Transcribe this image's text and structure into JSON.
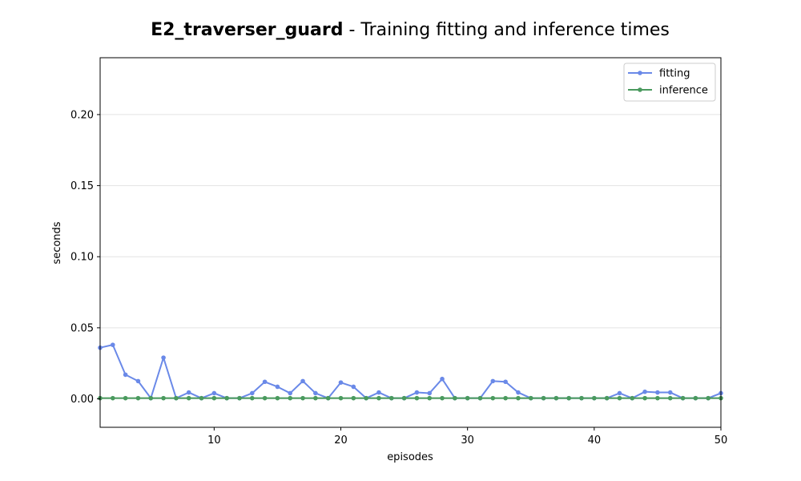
{
  "chart_data": {
    "type": "line",
    "title_bold": "E2_traverser_guard",
    "title_rest": " - Training fitting and inference times",
    "xlabel": "episodes",
    "ylabel": "seconds",
    "xlim": [
      1,
      50
    ],
    "ylim": [
      -0.02,
      0.24
    ],
    "xticks": [
      10,
      20,
      30,
      40,
      50
    ],
    "yticks": [
      0.0,
      0.05,
      0.1,
      0.15,
      0.2
    ],
    "ytick_labels": [
      "0.00",
      "0.05",
      "0.10",
      "0.15",
      "0.20"
    ],
    "grid": "horizontal",
    "legend": "top-right",
    "x": [
      1,
      2,
      3,
      4,
      5,
      6,
      7,
      8,
      9,
      10,
      11,
      12,
      13,
      14,
      15,
      16,
      17,
      18,
      19,
      20,
      21,
      22,
      23,
      24,
      25,
      26,
      27,
      28,
      29,
      30,
      31,
      32,
      33,
      34,
      35,
      36,
      37,
      38,
      39,
      40,
      41,
      42,
      43,
      44,
      45,
      46,
      47,
      48,
      49,
      50
    ],
    "series": [
      {
        "name": "fitting",
        "color": "#6a89e8",
        "values": [
          0.036,
          0.038,
          0.017,
          0.0125,
          0.0005,
          0.029,
          0.0005,
          0.0045,
          0.0005,
          0.004,
          0.0005,
          0.0005,
          0.004,
          0.012,
          0.0085,
          0.004,
          0.0125,
          0.004,
          0.0005,
          0.0115,
          0.0085,
          0.0005,
          0.0045,
          0.0005,
          0.0005,
          0.0045,
          0.004,
          0.014,
          0.0005,
          0.0005,
          0.0005,
          0.0125,
          0.012,
          0.0045,
          0.0005,
          0.0005,
          0.0005,
          0.0005,
          0.0005,
          0.0005,
          0.0005,
          0.004,
          0.0005,
          0.005,
          0.0045,
          0.0045,
          0.0005,
          0.0005,
          0.0005,
          0.004
        ]
      },
      {
        "name": "inference",
        "color": "#4a9a5e",
        "values": [
          0.0005,
          0.0005,
          0.0005,
          0.0005,
          0.0005,
          0.0005,
          0.0005,
          0.0005,
          0.0005,
          0.0005,
          0.0005,
          0.0005,
          0.0005,
          0.0005,
          0.0005,
          0.0005,
          0.0005,
          0.0005,
          0.0005,
          0.0005,
          0.0005,
          0.0005,
          0.0005,
          0.0005,
          0.0005,
          0.0005,
          0.0005,
          0.0005,
          0.0005,
          0.0005,
          0.0005,
          0.0005,
          0.0005,
          0.0005,
          0.0005,
          0.0005,
          0.0005,
          0.0005,
          0.0005,
          0.0005,
          0.0005,
          0.0005,
          0.0005,
          0.0005,
          0.0005,
          0.0005,
          0.0005,
          0.0005,
          0.0005,
          0.0005
        ]
      }
    ]
  }
}
